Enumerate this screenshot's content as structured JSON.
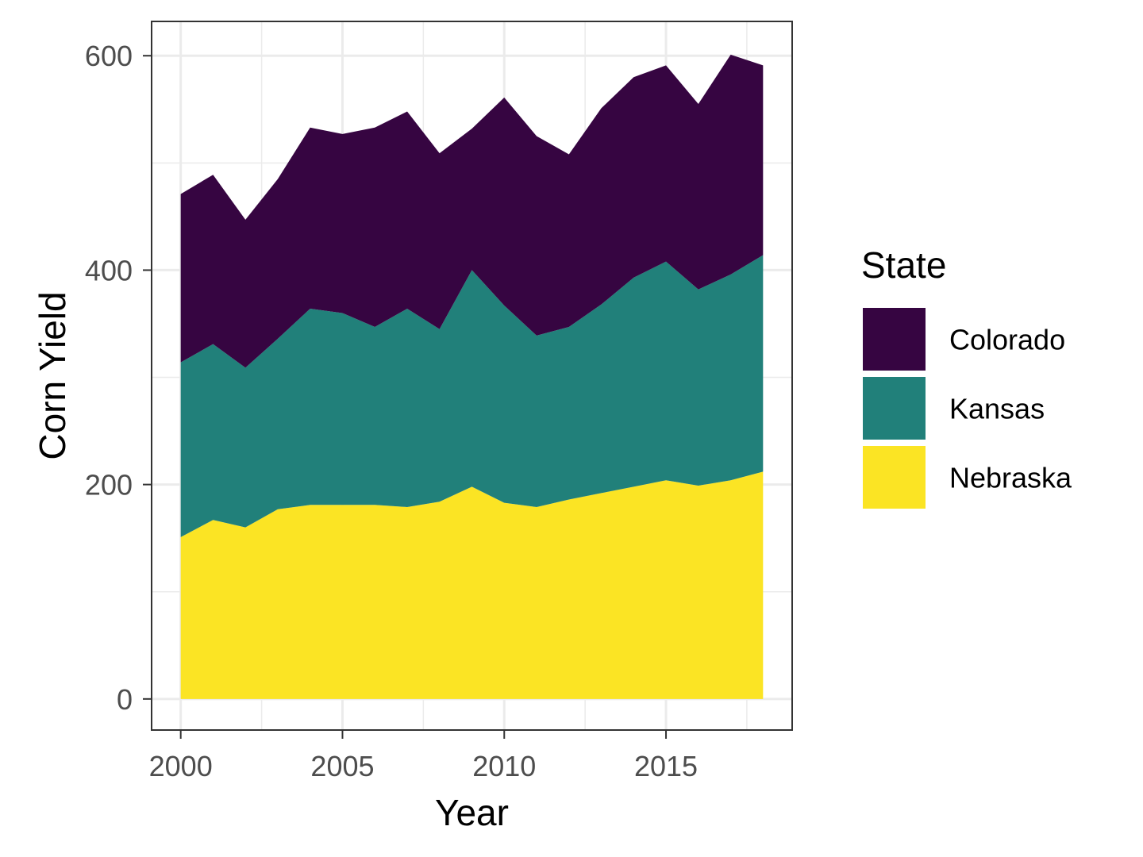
{
  "chart_data": {
    "type": "area",
    "stacked": true,
    "xlabel": "Year",
    "ylabel": "Corn Yield",
    "xlim": [
      1999.1,
      2018.9
    ],
    "ylim": [
      -29,
      632
    ],
    "x_ticks": [
      2000,
      2005,
      2010,
      2015
    ],
    "y_ticks": [
      0,
      200,
      400,
      600
    ],
    "grid": true,
    "legend": {
      "title": "State",
      "position": "right",
      "entries": [
        {
          "name": "Colorado",
          "color": "#360541"
        },
        {
          "name": "Kansas",
          "color": "#21807a"
        },
        {
          "name": "Nebraska",
          "color": "#fbe424"
        }
      ]
    },
    "x": [
      2000,
      2001,
      2002,
      2003,
      2004,
      2005,
      2006,
      2007,
      2008,
      2009,
      2010,
      2011,
      2012,
      2013,
      2014,
      2015,
      2016,
      2017,
      2018
    ],
    "series": [
      {
        "name": "Nebraska",
        "color": "#fbe424",
        "values": [
          151,
          167,
          160,
          177,
          181,
          181,
          181,
          179,
          184,
          198,
          183,
          179,
          186,
          192,
          198,
          204,
          199,
          204,
          212
        ]
      },
      {
        "name": "Kansas",
        "color": "#21807a",
        "values": [
          163,
          164,
          149,
          159,
          183,
          179,
          166,
          185,
          161,
          202,
          184,
          160,
          161,
          176,
          195,
          204,
          183,
          192,
          202
        ]
      },
      {
        "name": "Colorado",
        "color": "#360541",
        "values": [
          157,
          158,
          138,
          149,
          169,
          167,
          186,
          184,
          164,
          132,
          194,
          186,
          161,
          183,
          187,
          183,
          173,
          205,
          177
        ]
      }
    ]
  }
}
